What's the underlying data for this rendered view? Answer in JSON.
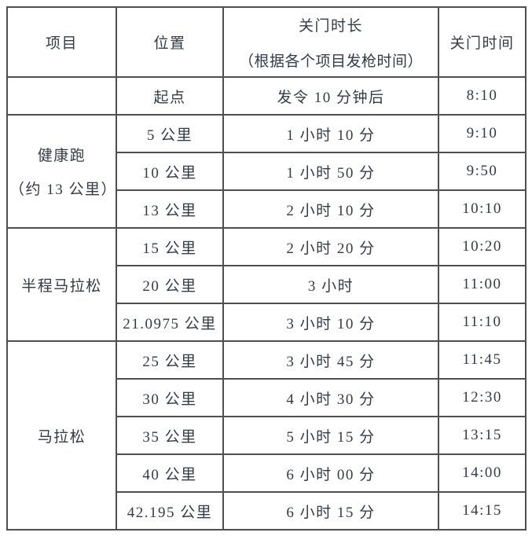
{
  "table": {
    "header": {
      "project": "项目",
      "location": "位置",
      "duration_title": "关门时长",
      "duration_note": "（根据各个项目发枪时间）",
      "close_time": "关门时间"
    },
    "groups": [
      {
        "name": "",
        "rows": [
          {
            "location": "起点",
            "duration": "发令 10 分钟后",
            "time": "8:10"
          }
        ]
      },
      {
        "name": "健康跑",
        "name_line2": "（约 13 公里）",
        "rows": [
          {
            "location": "5 公里",
            "duration": "1 小时 10 分",
            "time": "9:10"
          },
          {
            "location": "10 公里",
            "duration": "1 小时 50 分",
            "time": "9:50"
          },
          {
            "location": "13 公里",
            "duration": "2 小时 10 分",
            "time": "10:10"
          }
        ]
      },
      {
        "name": "半程马拉松",
        "rows": [
          {
            "location": "15 公里",
            "duration": "2 小时 20 分",
            "time": "10:20"
          },
          {
            "location": "20 公里",
            "duration": "3 小时",
            "time": "11:00"
          },
          {
            "location": "21.0975 公里",
            "duration": "3 小时 10 分",
            "time": "11:10"
          }
        ]
      },
      {
        "name": "马拉松",
        "rows": [
          {
            "location": "25 公里",
            "duration": "3 小时 45 分",
            "time": "11:45"
          },
          {
            "location": "30 公里",
            "duration": "4 小时 30 分",
            "time": "12:30"
          },
          {
            "location": "35 公里",
            "duration": "5 小时 15 分",
            "time": "13:15"
          },
          {
            "location": "40 公里",
            "duration": "6 小时 00 分",
            "time": "14:00"
          },
          {
            "location": "42.195 公里",
            "duration": "6 小时 15 分",
            "time": "14:15"
          }
        ]
      }
    ],
    "colors": {
      "border": "#4f4f4f",
      "text": "#333b47",
      "background": "#ffffff"
    }
  }
}
